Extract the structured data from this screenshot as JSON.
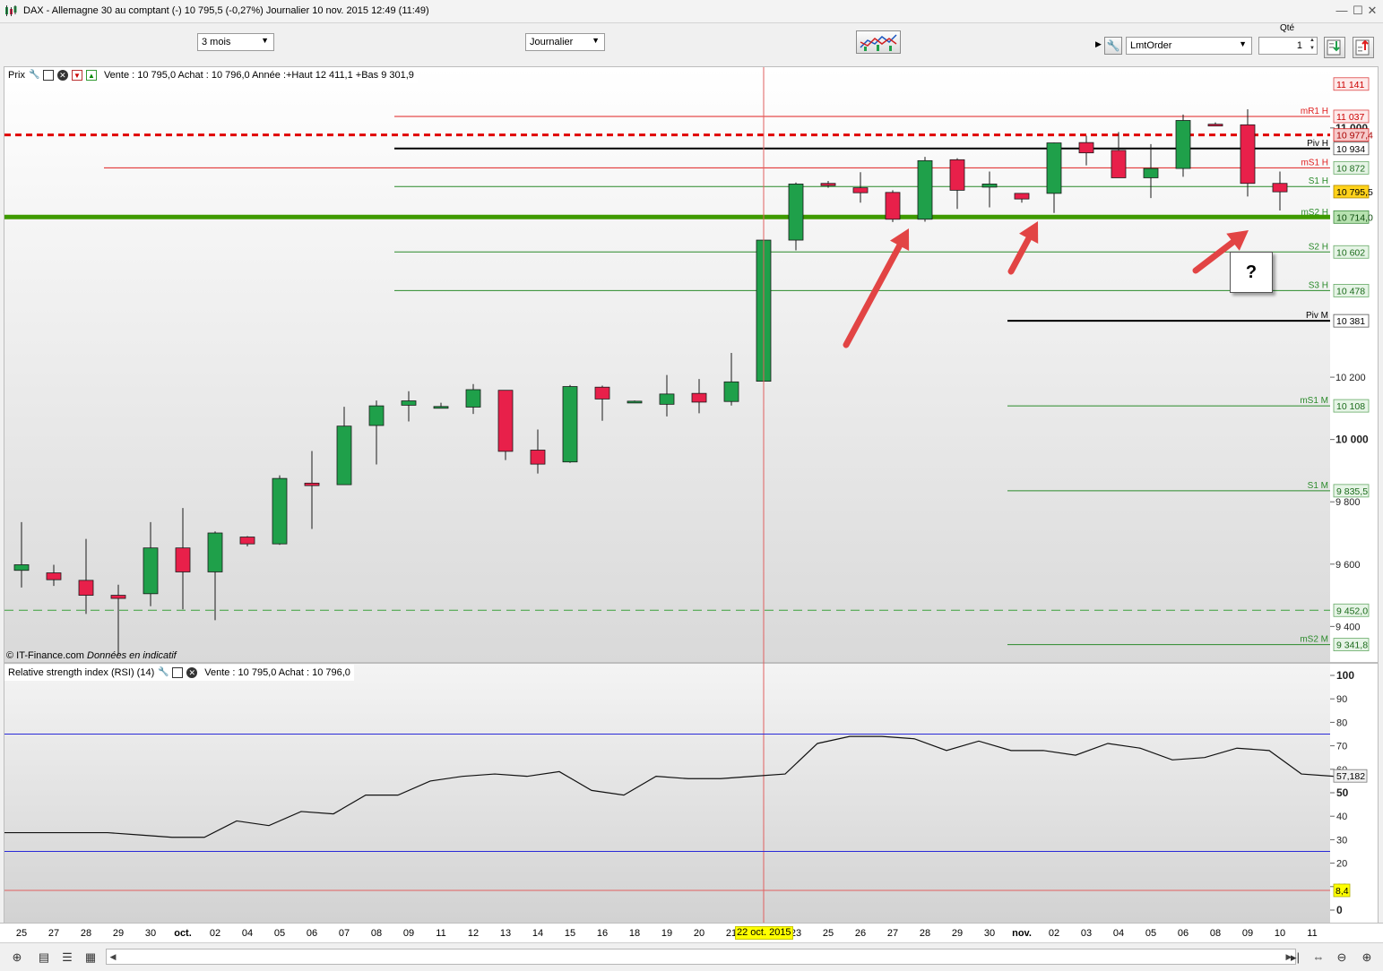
{
  "window": {
    "title": "DAX - Allemagne 30 au comptant (-)    10 795,5 (-0,27%)    Journalier  10 nov. 2015 12:49 (11:49)",
    "logo_icon": "candlestick-logo-icon",
    "minimize_icon": "minimize-icon",
    "maximize_icon": "maximize-icon",
    "close_icon": "close-icon"
  },
  "toolbar": {
    "period": "3 mois",
    "interval": "Journalier",
    "order_type": "LmtOrder",
    "qty_label": "Qté",
    "qty_value": "1",
    "strategy_icon": "strategy-chart-icon",
    "wrench_icon": "wrench-icon",
    "buy_icon": "buy-order-icon",
    "sell_icon": "sell-order-icon"
  },
  "price_panel": {
    "label": "Prix",
    "info": "Vente : 10 795,0  Achat : 10 796,0  Année :+Haut 12 411,1 +Bas 9 301,9",
    "copyright": "© IT-Finance.com",
    "copyright_note": "Données en indicatif"
  },
  "rsi_panel": {
    "label": "Relative strength index (RSI) (14)",
    "info": "Vente : 10 795,0  Achat : 10 796,0"
  },
  "annotation": {
    "question": "?"
  },
  "cursor_date": "22 oct. 2015",
  "colors": {
    "bull": "#1fa04a",
    "bear": "#e8204a",
    "support": "#3e9a00",
    "resistance": "#e00000",
    "pivot_red": "#e02020",
    "pivot_green": "#2a8a2a"
  },
  "chart_data": [
    {
      "type": "candlestick",
      "x": [
        "25",
        "27",
        "28",
        "29",
        "30",
        "oct.",
        "02",
        "04",
        "05",
        "06",
        "07",
        "08",
        "09",
        "11",
        "12",
        "13",
        "14",
        "15",
        "16",
        "18",
        "19",
        "20",
        "21",
        "22",
        "23",
        "25",
        "26",
        "27",
        "28",
        "29",
        "30",
        "nov.",
        "02",
        "03",
        "04",
        "05",
        "06",
        "08",
        "09",
        "10",
        "11"
      ],
      "candles": [
        {
          "o": 9580,
          "h": 9735,
          "l": 9525,
          "c": 9598
        },
        {
          "o": 9572,
          "h": 9598,
          "l": 9530,
          "c": 9550
        },
        {
          "o": 9548,
          "h": 9681,
          "l": 9440,
          "c": 9500
        },
        {
          "o": 9500,
          "h": 9534,
          "l": 9310,
          "c": 9490
        },
        {
          "o": 9505,
          "h": 9735,
          "l": 9465,
          "c": 9652
        },
        {
          "o": 9652,
          "h": 9780,
          "l": 9455,
          "c": 9575
        },
        {
          "o": 9575,
          "h": 9705,
          "l": 9420,
          "c": 9700
        },
        {
          "o": 9687,
          "h": 9690,
          "l": 9657,
          "c": 9665
        },
        {
          "o": 9665,
          "h": 9885,
          "l": 9662,
          "c": 9875
        },
        {
          "o": 9860,
          "h": 9963,
          "l": 9713,
          "c": 9852
        },
        {
          "o": 9855,
          "h": 10105,
          "l": 9855,
          "c": 10043
        },
        {
          "o": 10045,
          "h": 10125,
          "l": 9920,
          "c": 10108
        },
        {
          "o": 10110,
          "h": 10155,
          "l": 10058,
          "c": 10124
        },
        {
          "o": 10104,
          "h": 10118,
          "l": 10100,
          "c": 10106
        },
        {
          "o": 10104,
          "h": 10178,
          "l": 10082,
          "c": 10160
        },
        {
          "o": 10158,
          "h": 10158,
          "l": 9934,
          "c": 9962
        },
        {
          "o": 9966,
          "h": 10032,
          "l": 9891,
          "c": 9921
        },
        {
          "o": 9928,
          "h": 10175,
          "l": 9925,
          "c": 10170
        },
        {
          "o": 10168,
          "h": 10173,
          "l": 10060,
          "c": 10130
        },
        {
          "o": 10123,
          "h": 10125,
          "l": 10118,
          "c": 10123
        },
        {
          "o": 10113,
          "h": 10207,
          "l": 10074,
          "c": 10146
        },
        {
          "o": 10148,
          "h": 10194,
          "l": 10084,
          "c": 10120
        },
        {
          "o": 10122,
          "h": 10278,
          "l": 10109,
          "c": 10185
        },
        {
          "o": 10187,
          "h": 10641,
          "l": 10187,
          "c": 10640
        },
        {
          "o": 10640,
          "h": 10825,
          "l": 10607,
          "c": 10820
        },
        {
          "o": 10822,
          "h": 10830,
          "l": 10808,
          "c": 10815
        },
        {
          "o": 10808,
          "h": 10858,
          "l": 10760,
          "c": 10792
        },
        {
          "o": 10793,
          "h": 10800,
          "l": 10698,
          "c": 10707
        },
        {
          "o": 10707,
          "h": 10907,
          "l": 10699,
          "c": 10895
        },
        {
          "o": 10898,
          "h": 10903,
          "l": 10740,
          "c": 10800
        },
        {
          "o": 10810,
          "h": 10860,
          "l": 10745,
          "c": 10820
        },
        {
          "o": 10790,
          "h": 10790,
          "l": 10760,
          "c": 10772
        },
        {
          "o": 10790,
          "h": 10953,
          "l": 10727,
          "c": 10952
        },
        {
          "o": 10953,
          "h": 10975,
          "l": 10880,
          "c": 10920
        },
        {
          "o": 10928,
          "h": 10987,
          "l": 10840,
          "c": 10840
        },
        {
          "o": 10840,
          "h": 10948,
          "l": 10775,
          "c": 10870
        },
        {
          "o": 10870,
          "h": 11043,
          "l": 10843,
          "c": 11024
        },
        {
          "o": 11012,
          "h": 11018,
          "l": 11007,
          "c": 11010
        },
        {
          "o": 11010,
          "h": 11060,
          "l": 10780,
          "c": 10822
        },
        {
          "o": 10822,
          "h": 10860,
          "l": 10735,
          "c": 10795
        }
      ],
      "price_axis": {
        "ylim": [
          9286,
          11195
        ],
        "ticks": [
          "11 000",
          "10 200",
          "10 000",
          "9 800",
          "9 600",
          "9 400"
        ],
        "tick_values": [
          11000,
          10200,
          10000,
          9800,
          9600,
          9400
        ]
      },
      "tags": [
        {
          "label": "11 141",
          "value": 11141,
          "style": "red"
        },
        {
          "label": "11 037",
          "value": 11037,
          "style": "red"
        },
        {
          "label": "10 977,4",
          "value": 10977.4,
          "style": "redfill"
        },
        {
          "label": "10 934",
          "value": 10934,
          "style": "black"
        },
        {
          "label": "10 872",
          "value": 10872,
          "style": "green"
        },
        {
          "label": "10 795,5",
          "value": 10795.5,
          "style": "yellow"
        },
        {
          "label": "10 714,0",
          "value": 10714,
          "style": "greenfill"
        },
        {
          "label": "10 602",
          "value": 10602,
          "style": "green"
        },
        {
          "label": "10 478",
          "value": 10478,
          "style": "green"
        },
        {
          "label": "10 381",
          "value": 10381,
          "style": "black"
        },
        {
          "label": "10 108",
          "value": 10108,
          "style": "green"
        },
        {
          "label": "9 835,5",
          "value": 9835.5,
          "style": "green"
        },
        {
          "label": "9 452,0",
          "value": 9452,
          "style": "green"
        },
        {
          "label": "9 341,8",
          "value": 9341.8,
          "style": "green"
        }
      ],
      "pivots": [
        {
          "name": "mR1 H",
          "value": 11037,
          "from": "09",
          "color": "red"
        },
        {
          "name": "Piv H",
          "value": 10934,
          "from": "09",
          "color": "black"
        },
        {
          "name": "mS1 H",
          "value": 10872,
          "from": "29",
          "color": "red"
        },
        {
          "name": "S1 H",
          "value": 10812,
          "from": "09",
          "color": "green"
        },
        {
          "name": "mS2 H",
          "value": 10712,
          "from": "09",
          "color": "green"
        },
        {
          "name": "S2 H",
          "value": 10602,
          "from": "09",
          "color": "green"
        },
        {
          "name": "S3 H",
          "value": 10478,
          "from": "09",
          "color": "green"
        },
        {
          "name": "Piv M",
          "value": 10381,
          "from": "nov.",
          "color": "black"
        },
        {
          "name": "mS1 M",
          "value": 10108,
          "from": "nov.",
          "color": "green"
        },
        {
          "name": "S1 M",
          "value": 9835.5,
          "from": "nov.",
          "color": "green"
        },
        {
          "name": "mS2 M",
          "value": 9341.8,
          "from": "nov.",
          "color": "green"
        }
      ],
      "resistance_line": 10977.4,
      "support_line": 10714,
      "dashed_green_line": 9452
    },
    {
      "type": "line",
      "title": "Relative strength index (RSI) (14)",
      "values": [
        33,
        32,
        31,
        31,
        38,
        36,
        42,
        41,
        49,
        49,
        55,
        57,
        58,
        57,
        59,
        51,
        49,
        57,
        56,
        56,
        57,
        58,
        71,
        74,
        74,
        73,
        68,
        72,
        68,
        68,
        66,
        71,
        69,
        64,
        65,
        69,
        68,
        58,
        57
      ],
      "ylim": [
        0,
        100
      ],
      "ticks": [
        "100",
        "90",
        "80",
        "70",
        "60",
        "50",
        "40",
        "30",
        "20",
        "10",
        "0"
      ],
      "tick_values": [
        100,
        90,
        80,
        70,
        60,
        50,
        40,
        30,
        20,
        10,
        0
      ],
      "levels": [
        75,
        25,
        8.4
      ],
      "current_label": "57,182",
      "current_value": 57.182,
      "min_label": "8,4"
    }
  ],
  "bottombar": {
    "icons": [
      "crosshair-icon",
      "sheet-icon",
      "draw-tools-icon",
      "scroll-left-icon",
      "scroll-right-icon",
      "end-icon",
      "zoom-in-icon",
      "zoom-out-icon"
    ]
  }
}
